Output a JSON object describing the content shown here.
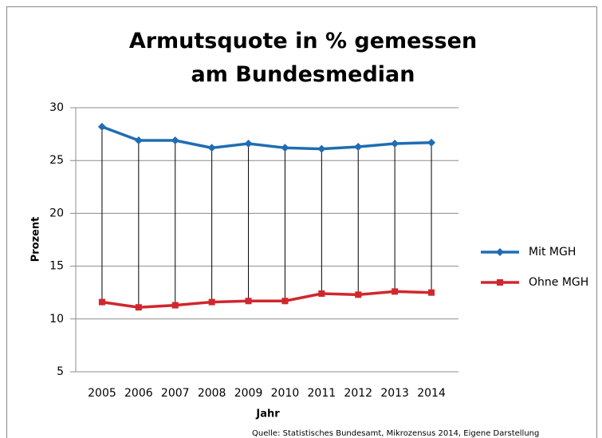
{
  "chart_data": {
    "type": "line",
    "title": "Armutsquote in % gemessen am Bundesmedian",
    "x_label": "Jahr",
    "y_label": "Prozent",
    "source": "Quelle: Statistisches Bundesamt, Mikrozensus 2014, Eigene Darstellung",
    "categories": [
      "2005",
      "2006",
      "2007",
      "2008",
      "2009",
      "2010",
      "2011",
      "2012",
      "2013",
      "2014"
    ],
    "series": [
      {
        "name": "Mit MGH",
        "color": "#1f6db3",
        "marker": "diamond",
        "values": [
          28.2,
          26.9,
          26.9,
          26.2,
          26.6,
          26.2,
          26.1,
          26.3,
          26.6,
          26.7
        ]
      },
      {
        "name": "Ohne MGH",
        "color": "#d0272d",
        "marker": "square",
        "values": [
          11.6,
          11.1,
          11.3,
          11.6,
          11.7,
          11.7,
          12.4,
          12.3,
          12.6,
          12.5
        ]
      }
    ],
    "ylim": [
      5,
      30
    ],
    "yticks": [
      5,
      10,
      15,
      20,
      25,
      30
    ],
    "grid": true,
    "high_low_lines": true,
    "legend": "right"
  }
}
